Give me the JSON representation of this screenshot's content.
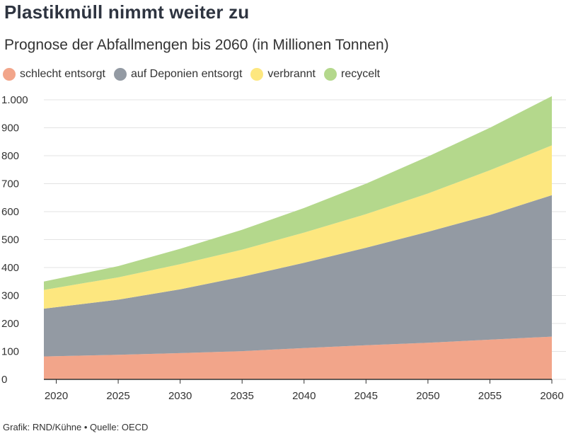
{
  "title": "Plastikmüll nimmt weiter zu",
  "subtitle": "Prognose der Abfallmengen bis 2060 (in Millionen Tonnen)",
  "footer": "Grafik: RND/Kühne • Quelle: OECD",
  "chart_data": {
    "type": "area",
    "stacked": true,
    "title": "Plastikmüll nimmt weiter zu",
    "subtitle": "Prognose der Abfallmengen bis 2060 (in Millionen Tonnen)",
    "xlabel": "",
    "ylabel": "",
    "x": [
      2019,
      2025,
      2030,
      2035,
      2040,
      2045,
      2050,
      2055,
      2060
    ],
    "xticks": [
      2020,
      2025,
      2030,
      2035,
      2040,
      2045,
      2050,
      2055,
      2060
    ],
    "xlim": [
      2019,
      2060
    ],
    "ylim": [
      0,
      1000
    ],
    "yticks": [
      0,
      100,
      200,
      300,
      400,
      500,
      600,
      700,
      800,
      900,
      1000
    ],
    "ytick_labels": [
      "0",
      "100",
      "200",
      "300",
      "400",
      "500",
      "600",
      "700",
      "800",
      "900",
      "1.000"
    ],
    "grid": true,
    "legend_position": "top-left",
    "series": [
      {
        "name": "schlecht entsorgt",
        "color": "#f2a58a",
        "values": [
          82,
          88,
          94,
          101,
          112,
          122,
          131,
          142,
          153
        ]
      },
      {
        "name": "auf Deponien entsorgt",
        "color": "#939aa3",
        "values": [
          171,
          197,
          228,
          266,
          305,
          349,
          397,
          446,
          506
        ]
      },
      {
        "name": "verbrannt",
        "color": "#fde77f",
        "values": [
          67,
          80,
          90,
          97,
          108,
          120,
          137,
          160,
          178
        ]
      },
      {
        "name": "recycelt",
        "color": "#b4d88c",
        "values": [
          30,
          40,
          55,
          71,
          88,
          109,
          132,
          152,
          176
        ]
      }
    ]
  }
}
